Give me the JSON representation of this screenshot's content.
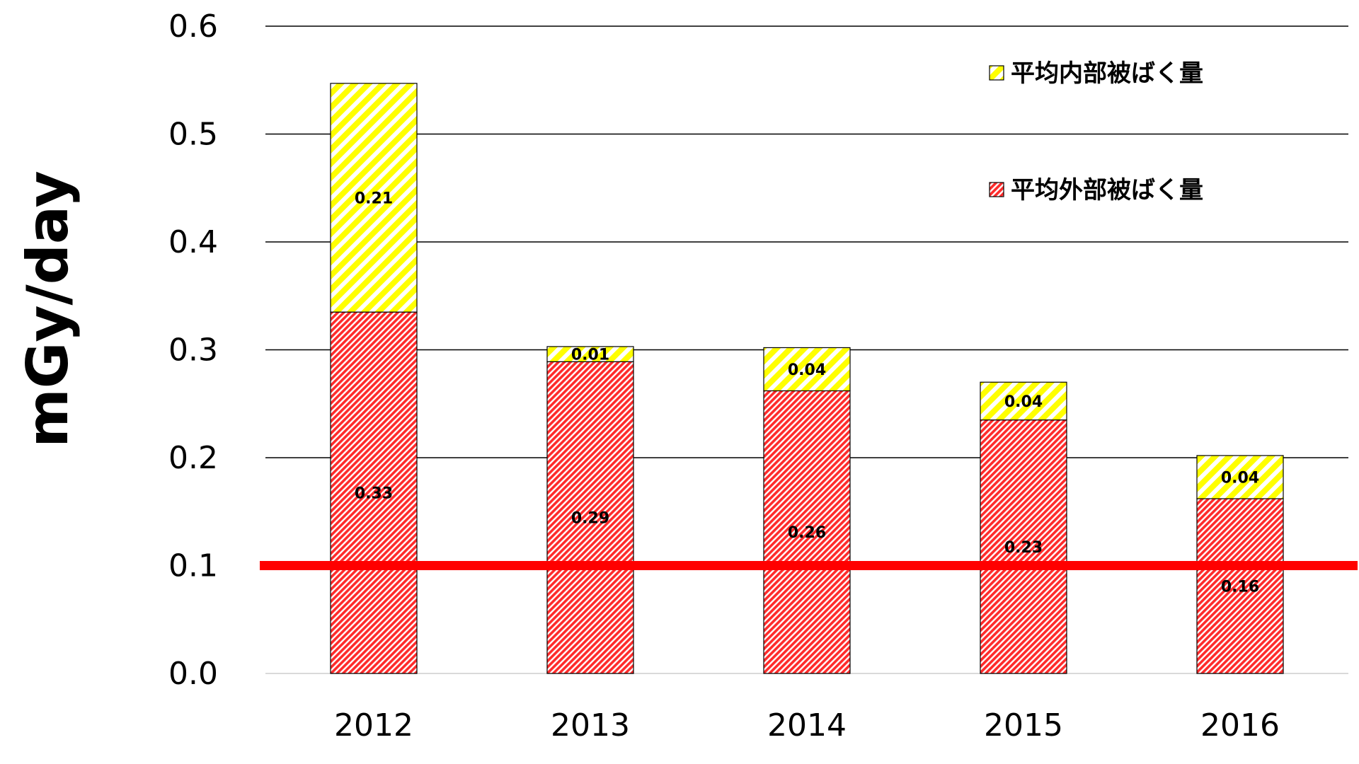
{
  "chart_data": {
    "type": "bar",
    "stacked": true,
    "categories": [
      "2012",
      "2013",
      "2014",
      "2015",
      "2016"
    ],
    "series": [
      {
        "name": "平均外部被ばく量",
        "values": [
          0.335,
          0.289,
          0.262,
          0.235,
          0.162
        ],
        "labels": [
          "0.33",
          "0.29",
          "0.26",
          "0.23",
          "0.16"
        ],
        "color": "#ff2b2b",
        "pattern": "dense-diagonal-hatch"
      },
      {
        "name": "平均内部被ばく量",
        "values": [
          0.212,
          0.014,
          0.04,
          0.035,
          0.04
        ],
        "labels": [
          "0.21",
          "0.01",
          "0.04",
          "0.04",
          "0.04"
        ],
        "color": "#ffff00",
        "pattern": "wide-diagonal-hatch"
      }
    ],
    "title": "",
    "xlabel": "",
    "ylabel": "mGy/day",
    "ylim": [
      0,
      0.6
    ],
    "yticks": [
      "0.0",
      "0.1",
      "0.2",
      "0.3",
      "0.4",
      "0.5",
      "0.6"
    ],
    "grid": true,
    "legend_position": "top-right",
    "reference_line": {
      "value": 0.1,
      "color": "#ff0000"
    }
  }
}
